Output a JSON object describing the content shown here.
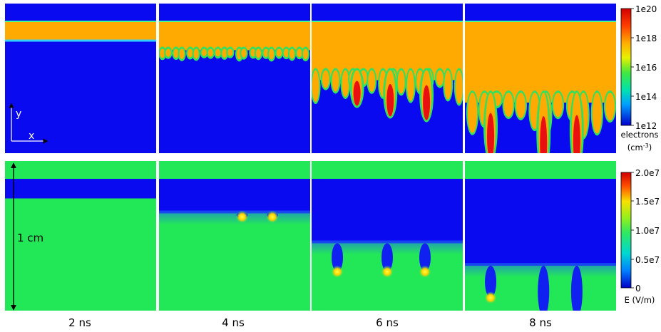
{
  "figure": {
    "time_labels": [
      "2 ns",
      "4 ns",
      "6 ns",
      "8 ns"
    ],
    "axes": {
      "y": "y",
      "x": "x"
    },
    "scale_label": "1 cm"
  },
  "colorbar_electrons": {
    "ticks": [
      "1e20",
      "1e18",
      "1e16",
      "1e14",
      "1e12"
    ],
    "label": "electrons",
    "unit_base": "(cm",
    "unit_exp": "-3",
    "unit_close": ")"
  },
  "colorbar_field": {
    "ticks": [
      "2.0e7",
      "1.5e7",
      "1.0e7",
      "0.5e7",
      "0"
    ],
    "label": "E (V/m)"
  },
  "panels": {
    "colors": {
      "background_blue": "#0a0af0",
      "field_green": "#22e858",
      "electron_orange": "#ffaa00",
      "streamer_red": "#e81010"
    },
    "front_position_fraction": [
      0.25,
      0.35,
      0.55,
      0.7
    ]
  }
}
